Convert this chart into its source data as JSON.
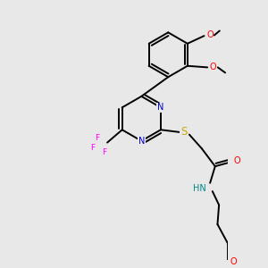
{
  "bg_color": "#e8e8e8",
  "bond_color": "#000000",
  "bond_width": 1.4,
  "atom_colors": {
    "N": "#0000cc",
    "O": "#ff0000",
    "S": "#ccaa00",
    "F": "#ff00ff",
    "H": "#008888",
    "C": "#000000"
  },
  "font_size": 7.0
}
